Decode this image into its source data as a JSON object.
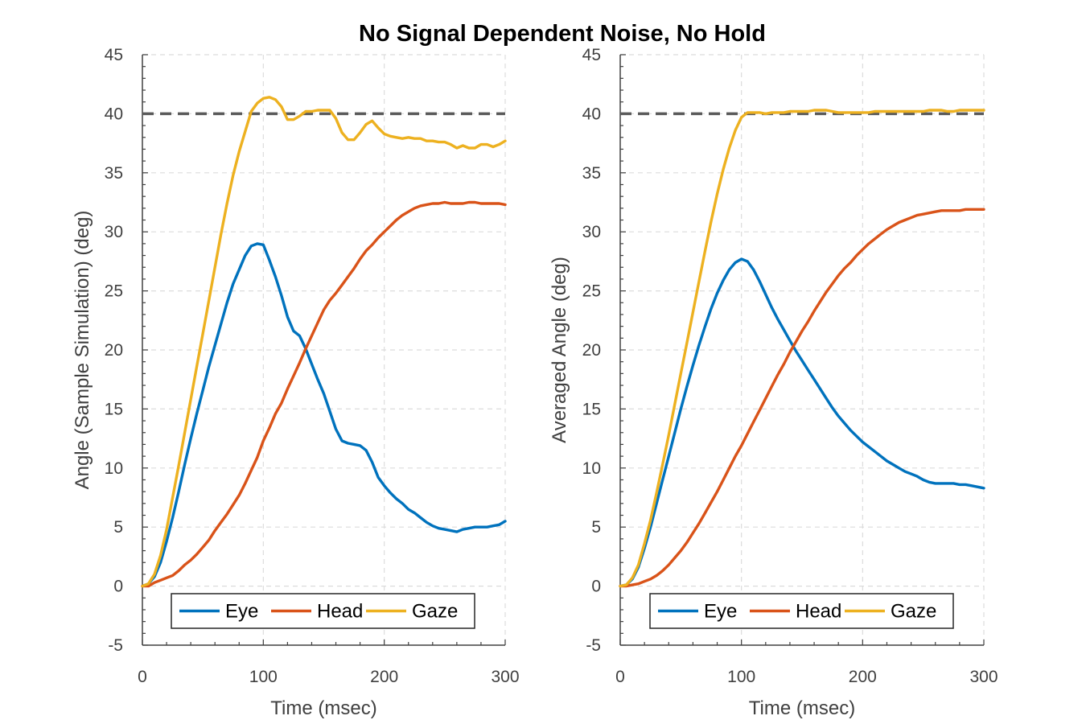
{
  "figure": {
    "title": "No Signal Dependent Noise, No Hold"
  },
  "colors": {
    "eye": "#0072BD",
    "head": "#D95319",
    "gaze": "#EDB120",
    "target": "#5a5a5a",
    "grid": "#dcdcdc",
    "axis": "#404040"
  },
  "chart_data": [
    {
      "type": "line",
      "xlabel": "Time (msec)",
      "ylabel": "Angle (Sample Simulation) (deg)",
      "xlim": [
        0,
        300
      ],
      "ylim": [
        -5,
        45
      ],
      "xticks": [
        0,
        100,
        200,
        300
      ],
      "yticks": [
        -5,
        0,
        5,
        10,
        15,
        20,
        25,
        30,
        35,
        40,
        45
      ],
      "grid": true,
      "legend": {
        "entries": [
          "Eye",
          "Head",
          "Gaze"
        ],
        "placement": "bottom-center"
      },
      "reference_line": {
        "y": 40,
        "style": "dashed"
      },
      "series": [
        {
          "name": "Eye",
          "color": "#0072BD",
          "x": [
            0,
            5,
            10,
            15,
            20,
            25,
            30,
            35,
            40,
            45,
            50,
            55,
            60,
            65,
            70,
            75,
            80,
            85,
            90,
            95,
            100,
            105,
            110,
            115,
            120,
            125,
            130,
            135,
            140,
            145,
            150,
            155,
            160,
            165,
            170,
            175,
            180,
            185,
            190,
            195,
            200,
            205,
            210,
            215,
            220,
            225,
            230,
            235,
            240,
            245,
            250,
            255,
            260,
            265,
            270,
            275,
            280,
            285,
            290,
            295,
            300
          ],
          "y": [
            0,
            0.2,
            0.8,
            2,
            3.8,
            5.8,
            8,
            10.3,
            12.5,
            14.6,
            16.6,
            18.6,
            20.4,
            22.2,
            24,
            25.6,
            26.8,
            28,
            28.8,
            29,
            28.9,
            27.6,
            26.2,
            24.6,
            22.8,
            21.6,
            21.2,
            20.1,
            18.8,
            17.5,
            16.3,
            14.8,
            13.3,
            12.3,
            12.1,
            12,
            11.9,
            11.5,
            10.5,
            9.2,
            8.5,
            7.9,
            7.4,
            7,
            6.5,
            6.2,
            5.8,
            5.4,
            5.1,
            4.9,
            4.8,
            4.7,
            4.6,
            4.8,
            4.9,
            5.0,
            5.0,
            5.0,
            5.1,
            5.2,
            5.5
          ]
        },
        {
          "name": "Head",
          "color": "#D95319",
          "x": [
            0,
            5,
            10,
            15,
            20,
            25,
            30,
            35,
            40,
            45,
            50,
            55,
            60,
            65,
            70,
            75,
            80,
            85,
            90,
            95,
            100,
            105,
            110,
            115,
            120,
            125,
            130,
            135,
            140,
            145,
            150,
            155,
            160,
            165,
            170,
            175,
            180,
            185,
            190,
            195,
            200,
            205,
            210,
            215,
            220,
            225,
            230,
            235,
            240,
            245,
            250,
            255,
            260,
            265,
            270,
            275,
            280,
            285,
            290,
            295,
            300
          ],
          "y": [
            0,
            0,
            0.3,
            0.5,
            0.7,
            0.9,
            1.3,
            1.8,
            2.2,
            2.7,
            3.3,
            3.9,
            4.7,
            5.4,
            6.1,
            6.9,
            7.7,
            8.7,
            9.8,
            10.9,
            12.3,
            13.4,
            14.6,
            15.5,
            16.7,
            17.8,
            18.9,
            20.1,
            21.2,
            22.3,
            23.4,
            24.2,
            24.8,
            25.5,
            26.2,
            26.9,
            27.7,
            28.4,
            28.9,
            29.5,
            30.0,
            30.5,
            31.0,
            31.4,
            31.7,
            32.0,
            32.2,
            32.3,
            32.4,
            32.4,
            32.5,
            32.4,
            32.4,
            32.4,
            32.5,
            32.5,
            32.4,
            32.4,
            32.4,
            32.4,
            32.3
          ]
        },
        {
          "name": "Gaze",
          "color": "#EDB120",
          "x": [
            0,
            5,
            10,
            15,
            20,
            25,
            30,
            35,
            40,
            45,
            50,
            55,
            60,
            65,
            70,
            75,
            80,
            85,
            90,
            95,
            100,
            105,
            110,
            115,
            120,
            125,
            130,
            135,
            140,
            145,
            150,
            155,
            160,
            165,
            170,
            175,
            180,
            185,
            190,
            195,
            200,
            205,
            210,
            215,
            220,
            225,
            230,
            235,
            240,
            245,
            250,
            255,
            260,
            265,
            270,
            275,
            280,
            285,
            290,
            295,
            300
          ],
          "y": [
            0,
            0.2,
            1.0,
            2.6,
            4.8,
            7.5,
            10.2,
            13.0,
            15.8,
            18.6,
            21.4,
            24.2,
            27.0,
            29.8,
            32.4,
            34.8,
            36.8,
            38.5,
            40.2,
            40.9,
            41.3,
            41.4,
            41.2,
            40.6,
            39.5,
            39.5,
            39.8,
            40.2,
            40.2,
            40.3,
            40.3,
            40.3,
            39.6,
            38.4,
            37.8,
            37.8,
            38.4,
            39.1,
            39.4,
            38.8,
            38.3,
            38.1,
            38.0,
            37.9,
            38.0,
            37.9,
            37.9,
            37.7,
            37.7,
            37.6,
            37.6,
            37.4,
            37.1,
            37.3,
            37.1,
            37.1,
            37.4,
            37.4,
            37.2,
            37.4,
            37.7
          ]
        }
      ]
    },
    {
      "type": "line",
      "xlabel": "Time (msec)",
      "ylabel": "Averaged Angle (deg)",
      "xlim": [
        0,
        300
      ],
      "ylim": [
        -5,
        45
      ],
      "xticks": [
        0,
        100,
        200,
        300
      ],
      "yticks": [
        -5,
        0,
        5,
        10,
        15,
        20,
        25,
        30,
        35,
        40,
        45
      ],
      "grid": true,
      "legend": {
        "entries": [
          "Eye",
          "Head",
          "Gaze"
        ],
        "placement": "bottom-center"
      },
      "reference_line": {
        "y": 40,
        "style": "dashed"
      },
      "series": [
        {
          "name": "Eye",
          "color": "#0072BD",
          "x": [
            0,
            5,
            10,
            15,
            20,
            25,
            30,
            35,
            40,
            45,
            50,
            55,
            60,
            65,
            70,
            75,
            80,
            85,
            90,
            95,
            100,
            105,
            110,
            115,
            120,
            125,
            130,
            135,
            140,
            145,
            150,
            155,
            160,
            165,
            170,
            175,
            180,
            185,
            190,
            195,
            200,
            205,
            210,
            215,
            220,
            225,
            230,
            235,
            240,
            245,
            250,
            255,
            260,
            265,
            270,
            275,
            280,
            285,
            290,
            295,
            300
          ],
          "y": [
            0,
            0.1,
            0.6,
            1.6,
            3.2,
            5.0,
            7.0,
            9.0,
            11.0,
            13.0,
            15.0,
            16.9,
            18.7,
            20.4,
            22.0,
            23.5,
            24.8,
            25.9,
            26.8,
            27.4,
            27.7,
            27.5,
            26.8,
            25.8,
            24.7,
            23.6,
            22.6,
            21.7,
            20.8,
            19.9,
            19.1,
            18.3,
            17.5,
            16.7,
            15.9,
            15.1,
            14.4,
            13.8,
            13.2,
            12.7,
            12.2,
            11.8,
            11.4,
            11.0,
            10.6,
            10.3,
            10.0,
            9.7,
            9.5,
            9.3,
            9.0,
            8.8,
            8.7,
            8.7,
            8.7,
            8.7,
            8.6,
            8.6,
            8.5,
            8.4,
            8.3
          ]
        },
        {
          "name": "Head",
          "color": "#D95319",
          "x": [
            0,
            5,
            10,
            15,
            20,
            25,
            30,
            35,
            40,
            45,
            50,
            55,
            60,
            65,
            70,
            75,
            80,
            85,
            90,
            95,
            100,
            105,
            110,
            115,
            120,
            125,
            130,
            135,
            140,
            145,
            150,
            155,
            160,
            165,
            170,
            175,
            180,
            185,
            190,
            195,
            200,
            205,
            210,
            215,
            220,
            225,
            230,
            235,
            240,
            245,
            250,
            255,
            260,
            265,
            270,
            275,
            280,
            285,
            290,
            295,
            300
          ],
          "y": [
            0,
            0,
            0.1,
            0.2,
            0.4,
            0.6,
            0.9,
            1.3,
            1.8,
            2.4,
            3.0,
            3.7,
            4.5,
            5.3,
            6.2,
            7.1,
            8.0,
            9.0,
            10.0,
            11.0,
            11.9,
            12.9,
            13.9,
            14.9,
            15.9,
            16.9,
            17.9,
            18.8,
            19.8,
            20.7,
            21.6,
            22.4,
            23.3,
            24.1,
            24.9,
            25.6,
            26.3,
            26.9,
            27.4,
            28.0,
            28.5,
            29.0,
            29.4,
            29.8,
            30.2,
            30.5,
            30.8,
            31.0,
            31.2,
            31.4,
            31.5,
            31.6,
            31.7,
            31.8,
            31.8,
            31.8,
            31.8,
            31.9,
            31.9,
            31.9,
            31.9
          ]
        },
        {
          "name": "Gaze",
          "color": "#EDB120",
          "x": [
            0,
            5,
            10,
            15,
            20,
            25,
            30,
            35,
            40,
            45,
            50,
            55,
            60,
            65,
            70,
            75,
            80,
            85,
            90,
            95,
            100,
            105,
            110,
            115,
            120,
            125,
            130,
            135,
            140,
            145,
            150,
            155,
            160,
            165,
            170,
            175,
            180,
            185,
            190,
            195,
            200,
            205,
            210,
            215,
            220,
            225,
            230,
            235,
            240,
            245,
            250,
            255,
            260,
            265,
            270,
            275,
            280,
            285,
            290,
            295,
            300
          ],
          "y": [
            0,
            0.1,
            0.7,
            1.8,
            3.6,
            5.6,
            7.9,
            10.3,
            12.8,
            15.4,
            18.0,
            20.6,
            23.2,
            25.8,
            28.4,
            30.9,
            33.2,
            35.3,
            37.1,
            38.6,
            39.7,
            40.1,
            40.1,
            40.1,
            40.0,
            40.1,
            40.1,
            40.1,
            40.2,
            40.2,
            40.2,
            40.2,
            40.3,
            40.3,
            40.3,
            40.2,
            40.1,
            40.1,
            40.1,
            40.1,
            40.1,
            40.1,
            40.2,
            40.2,
            40.2,
            40.2,
            40.2,
            40.2,
            40.2,
            40.2,
            40.2,
            40.3,
            40.3,
            40.3,
            40.2,
            40.2,
            40.3,
            40.3,
            40.3,
            40.3,
            40.3
          ]
        }
      ]
    }
  ]
}
